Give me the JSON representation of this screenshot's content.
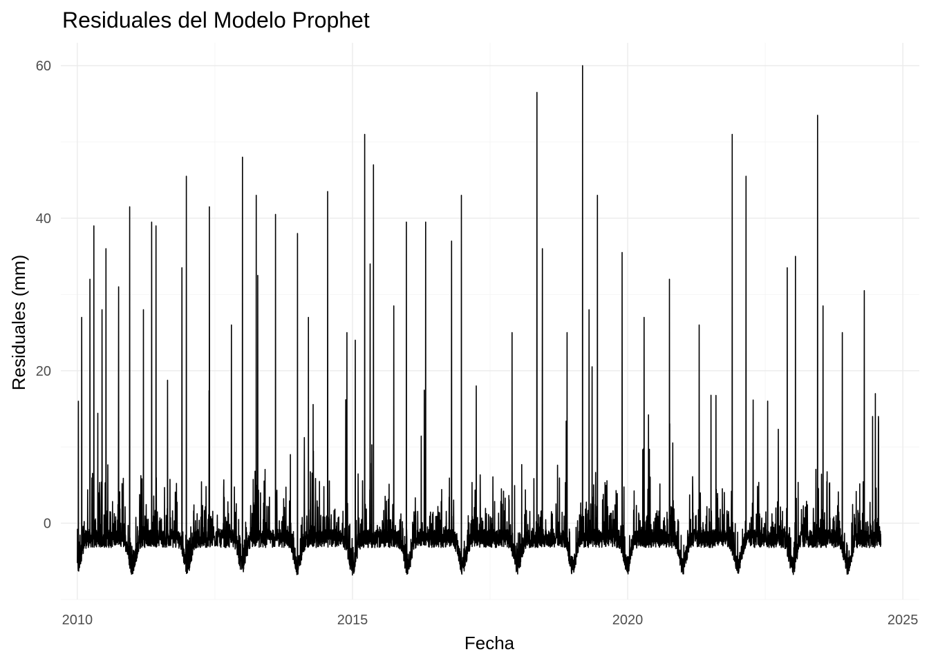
{
  "chart_data": {
    "type": "line",
    "title": "Residuales del Modelo Prophet",
    "xlabel": "Fecha",
    "ylabel": "Residuales (mm)",
    "xlim": [
      2009.7,
      2025.3
    ],
    "ylim": [
      -10,
      63
    ],
    "x_ticks": [
      2010,
      2015,
      2020,
      2025
    ],
    "x_tick_labels": [
      "2010",
      "2015",
      "2020",
      "2025"
    ],
    "y_ticks": [
      0,
      20,
      40,
      60
    ],
    "y_tick_labels": [
      "0",
      "20",
      "40",
      "60"
    ],
    "x_start": 2010.0,
    "x_end": 2024.6,
    "grid": true,
    "legend": "none",
    "series_color": "#000000",
    "baseline": -2,
    "trough_level": -6.5,
    "troughs": [
      2010.0,
      2011.0,
      2012.0,
      2013.0,
      2014.0,
      2015.0,
      2016.0,
      2017.0,
      2018.0,
      2019.0,
      2020.0,
      2021.0,
      2022.0,
      2023.0,
      2024.0
    ],
    "spikes": [
      {
        "x": 2010.02,
        "y": 16
      },
      {
        "x": 2010.08,
        "y": 27
      },
      {
        "x": 2010.3,
        "y": 39
      },
      {
        "x": 2010.23,
        "y": 32
      },
      {
        "x": 2010.45,
        "y": 28
      },
      {
        "x": 2010.52,
        "y": 36
      },
      {
        "x": 2010.75,
        "y": 31
      },
      {
        "x": 2010.95,
        "y": 41.5
      },
      {
        "x": 2011.2,
        "y": 28
      },
      {
        "x": 2011.35,
        "y": 39.5
      },
      {
        "x": 2011.43,
        "y": 39
      },
      {
        "x": 2011.9,
        "y": 33.5
      },
      {
        "x": 2011.98,
        "y": 45.5
      },
      {
        "x": 2012.4,
        "y": 41.5
      },
      {
        "x": 2012.8,
        "y": 26
      },
      {
        "x": 2013.0,
        "y": 48
      },
      {
        "x": 2013.25,
        "y": 43
      },
      {
        "x": 2013.28,
        "y": 32.5
      },
      {
        "x": 2013.6,
        "y": 40.5
      },
      {
        "x": 2014.0,
        "y": 38
      },
      {
        "x": 2014.2,
        "y": 27
      },
      {
        "x": 2014.55,
        "y": 43.5
      },
      {
        "x": 2014.9,
        "y": 25
      },
      {
        "x": 2015.05,
        "y": 24
      },
      {
        "x": 2015.22,
        "y": 51
      },
      {
        "x": 2015.32,
        "y": 34
      },
      {
        "x": 2015.38,
        "y": 47
      },
      {
        "x": 2015.75,
        "y": 28.5
      },
      {
        "x": 2015.98,
        "y": 39.5
      },
      {
        "x": 2016.33,
        "y": 39.5
      },
      {
        "x": 2016.8,
        "y": 37
      },
      {
        "x": 2016.98,
        "y": 43
      },
      {
        "x": 2017.25,
        "y": 18
      },
      {
        "x": 2017.9,
        "y": 25
      },
      {
        "x": 2018.35,
        "y": 56.5
      },
      {
        "x": 2018.45,
        "y": 36
      },
      {
        "x": 2018.9,
        "y": 25
      },
      {
        "x": 2019.18,
        "y": 60
      },
      {
        "x": 2019.3,
        "y": 28
      },
      {
        "x": 2019.45,
        "y": 43
      },
      {
        "x": 2019.9,
        "y": 35.5
      },
      {
        "x": 2020.3,
        "y": 27
      },
      {
        "x": 2020.76,
        "y": 32
      },
      {
        "x": 2021.3,
        "y": 26
      },
      {
        "x": 2021.9,
        "y": 51
      },
      {
        "x": 2022.15,
        "y": 45.5
      },
      {
        "x": 2022.9,
        "y": 33.5
      },
      {
        "x": 2023.05,
        "y": 35
      },
      {
        "x": 2023.45,
        "y": 53.5
      },
      {
        "x": 2023.55,
        "y": 28.5
      },
      {
        "x": 2023.9,
        "y": 25
      },
      {
        "x": 2024.3,
        "y": 30.5
      },
      {
        "x": 2024.45,
        "y": 14
      },
      {
        "x": 2024.5,
        "y": 17
      }
    ]
  }
}
